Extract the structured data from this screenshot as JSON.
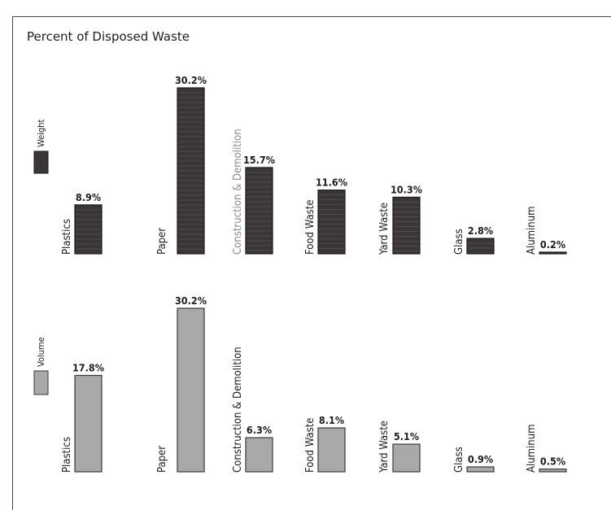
{
  "chart_data": {
    "type": "bar",
    "title": "Percent of Disposed Waste",
    "categories": [
      "Plastics",
      "Paper",
      "Construction & Demolition",
      "Food Waste",
      "Yard Waste",
      "Glass",
      "Aluminum"
    ],
    "series": [
      {
        "name": "Weight",
        "values": [
          8.9,
          30.2,
          15.7,
          11.6,
          10.3,
          2.8,
          0.2
        ],
        "labels": [
          "8.9%",
          "30.2%",
          "15.7%",
          "11.6%",
          "10.3%",
          "2.8%",
          "0.2%"
        ],
        "color": "#3a3536",
        "category_label_colors": [
          "#1e1e1e",
          "#1e1e1e",
          "#8a8a8a",
          "#1e1e1e",
          "#1e1e1e",
          "#1e1e1e",
          "#1e1e1e"
        ]
      },
      {
        "name": "Volume",
        "values": [
          17.8,
          30.2,
          6.3,
          8.1,
          5.1,
          0.9,
          0.5
        ],
        "labels": [
          "17.8%",
          "30.2%",
          "6.3%",
          "8.1%",
          "5.1%",
          "0.9%",
          "0.5%"
        ],
        "color": "#a9a9a9",
        "category_label_colors": [
          "#1e1e1e",
          "#1e1e1e",
          "#1e1e1e",
          "#1e1e1e",
          "#1e1e1e",
          "#1e1e1e",
          "#1e1e1e"
        ]
      }
    ],
    "xlabel": "",
    "ylabel": "",
    "ylim": [
      0,
      30.2
    ],
    "grid": false,
    "legend": "left, beside each panel"
  }
}
